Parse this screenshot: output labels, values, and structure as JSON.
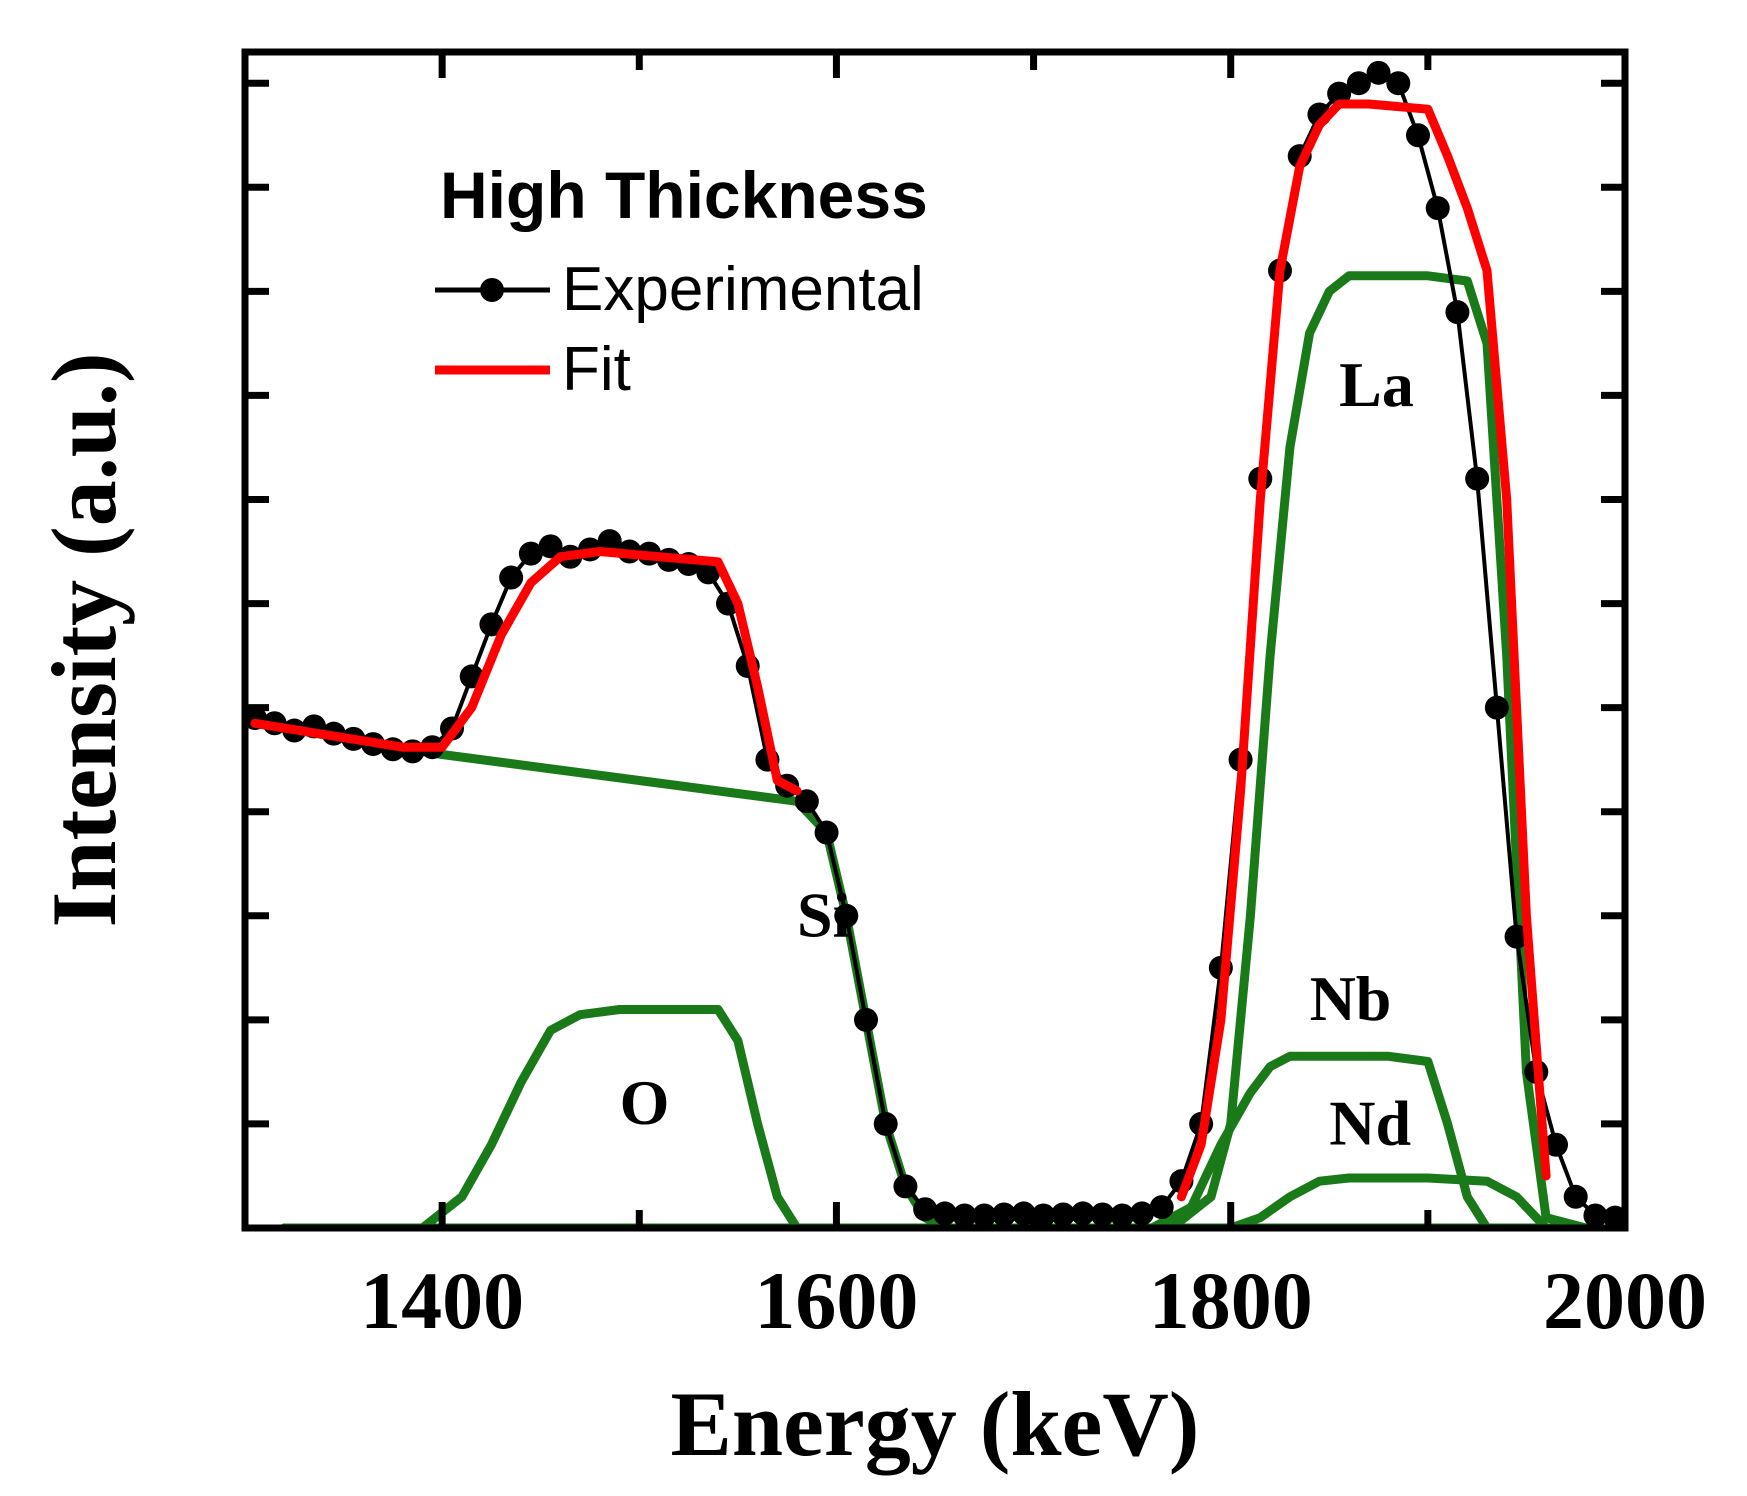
{
  "chart_data": {
    "type": "line",
    "title": "",
    "xlabel": "Energy (keV)",
    "ylabel": "Intensity (a.u.)",
    "xlim": [
      1300,
      2000
    ],
    "ylim": [
      0,
      1.13
    ],
    "xticks": [
      1400,
      1600,
      1800,
      2000
    ],
    "legend": {
      "title": "High Thickness",
      "placement": "top-left",
      "entries": [
        {
          "label": "Experimental",
          "color": "#000000",
          "style": "line+dots"
        },
        {
          "label": "Fit",
          "color": "#ff0000",
          "style": "line"
        }
      ]
    },
    "annotations": [
      {
        "text": "La",
        "x": 1855,
        "y": 0.79
      },
      {
        "text": "Si",
        "x": 1580,
        "y": 0.28
      },
      {
        "text": "Nb",
        "x": 1840,
        "y": 0.2
      },
      {
        "text": "O",
        "x": 1490,
        "y": 0.1
      },
      {
        "text": "Nd",
        "x": 1850,
        "y": 0.08
      }
    ],
    "series": [
      {
        "name": "Experimental",
        "color": "#000000",
        "x": [
          1305,
          1315,
          1325,
          1335,
          1345,
          1355,
          1365,
          1375,
          1385,
          1395,
          1405,
          1415,
          1425,
          1435,
          1445,
          1455,
          1465,
          1475,
          1485,
          1495,
          1505,
          1515,
          1525,
          1535,
          1545,
          1555,
          1565,
          1575,
          1585,
          1595,
          1605,
          1615,
          1625,
          1635,
          1645,
          1655,
          1665,
          1675,
          1685,
          1695,
          1705,
          1715,
          1725,
          1735,
          1745,
          1755,
          1765,
          1775,
          1785,
          1795,
          1805,
          1815,
          1825,
          1835,
          1845,
          1855,
          1865,
          1875,
          1885,
          1895,
          1905,
          1915,
          1925,
          1935,
          1945,
          1955,
          1965,
          1975,
          1985,
          1995
        ],
        "y": [
          0.49,
          0.485,
          0.478,
          0.482,
          0.475,
          0.47,
          0.465,
          0.46,
          0.458,
          0.462,
          0.48,
          0.53,
          0.58,
          0.625,
          0.648,
          0.655,
          0.645,
          0.652,
          0.66,
          0.65,
          0.648,
          0.642,
          0.638,
          0.63,
          0.6,
          0.54,
          0.45,
          0.425,
          0.41,
          0.38,
          0.3,
          0.2,
          0.1,
          0.04,
          0.018,
          0.014,
          0.012,
          0.012,
          0.013,
          0.014,
          0.012,
          0.013,
          0.014,
          0.013,
          0.012,
          0.014,
          0.02,
          0.045,
          0.1,
          0.25,
          0.45,
          0.72,
          0.92,
          1.03,
          1.07,
          1.09,
          1.1,
          1.11,
          1.1,
          1.05,
          0.98,
          0.88,
          0.72,
          0.5,
          0.28,
          0.15,
          0.08,
          0.03,
          0.012,
          0.01
        ]
      },
      {
        "name": "Fit",
        "color": "#ff0000",
        "x": [
          1305,
          1380,
          1400,
          1415,
          1430,
          1445,
          1460,
          1480,
          1540,
          1550,
          1560,
          1570,
          1580
        ],
        "y": [
          0.485,
          0.462,
          0.462,
          0.5,
          0.57,
          0.62,
          0.645,
          0.65,
          0.64,
          0.6,
          0.52,
          0.43,
          0.42
        ],
        "x2": [
          1775,
          1785,
          1795,
          1805,
          1815,
          1825,
          1835,
          1845,
          1855,
          1870,
          1900,
          1910,
          1920,
          1930,
          1940,
          1950,
          1960
        ],
        "y2": [
          0.03,
          0.08,
          0.2,
          0.42,
          0.7,
          0.92,
          1.02,
          1.06,
          1.08,
          1.08,
          1.075,
          1.03,
          0.98,
          0.92,
          0.7,
          0.3,
          0.05
        ]
      },
      {
        "name": "Si",
        "color": "#1a7a1a",
        "x": [
          1305,
          1400,
          1500,
          1580,
          1595,
          1605,
          1615,
          1625,
          1635,
          1645,
          1655,
          1700,
          1780,
          1900,
          1980
        ],
        "y": [
          0.485,
          0.455,
          0.43,
          0.41,
          0.38,
          0.3,
          0.2,
          0.1,
          0.04,
          0.01,
          0.0,
          0.0,
          0.0,
          0.0,
          0.0
        ]
      },
      {
        "name": "O",
        "color": "#1a7a1a",
        "x": [
          1320,
          1390,
          1410,
          1425,
          1440,
          1455,
          1470,
          1490,
          1540,
          1550,
          1560,
          1570,
          1580,
          1600,
          1980
        ],
        "y": [
          0.0,
          0.0,
          0.03,
          0.08,
          0.14,
          0.19,
          0.205,
          0.21,
          0.21,
          0.18,
          0.1,
          0.03,
          0.0,
          0.0,
          0.0
        ]
      },
      {
        "name": "La",
        "color": "#1a7a1a",
        "x": [
          1320,
          1770,
          1790,
          1800,
          1810,
          1820,
          1830,
          1840,
          1850,
          1860,
          1870,
          1900,
          1920,
          1930,
          1940,
          1950,
          1960,
          1980
        ],
        "y": [
          0.0,
          0.0,
          0.03,
          0.1,
          0.3,
          0.55,
          0.75,
          0.86,
          0.9,
          0.915,
          0.915,
          0.915,
          0.91,
          0.85,
          0.55,
          0.15,
          0.01,
          0.0
        ]
      },
      {
        "name": "Nb",
        "color": "#1a7a1a",
        "x": [
          1320,
          1760,
          1780,
          1795,
          1810,
          1820,
          1830,
          1850,
          1880,
          1900,
          1910,
          1920,
          1930,
          1940,
          1980
        ],
        "y": [
          0.0,
          0.0,
          0.02,
          0.08,
          0.13,
          0.155,
          0.165,
          0.165,
          0.165,
          0.16,
          0.1,
          0.03,
          0.0,
          0.0,
          0.0
        ]
      },
      {
        "name": "Nd",
        "color": "#1a7a1a",
        "x": [
          1320,
          1800,
          1815,
          1830,
          1845,
          1860,
          1900,
          1930,
          1945,
          1955,
          1960,
          1980
        ],
        "y": [
          0.0,
          0.0,
          0.01,
          0.03,
          0.045,
          0.048,
          0.048,
          0.045,
          0.03,
          0.01,
          0.0,
          0.0
        ]
      }
    ]
  }
}
